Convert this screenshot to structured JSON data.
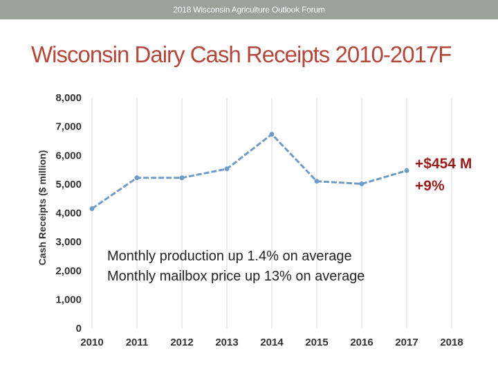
{
  "header": {
    "forum": "2018 Wisconsin Agriculture Outlook Forum"
  },
  "slide": {
    "title": "Wisconsin Dairy Cash Receipts 2010-2017F"
  },
  "colors": {
    "accent": "#b5473a",
    "series": "#6f9bc6",
    "annotation": "#9b1c1c",
    "header_bar": "#9aa29a"
  },
  "chart_data": {
    "type": "line",
    "title": "Wisconsin Dairy Cash Receipts 2010-2017F",
    "xlabel": "",
    "ylabel": "Cash Receipts ($ million)",
    "x_ticks": [
      "2010",
      "2011",
      "2012",
      "2013",
      "2014",
      "2015",
      "2016",
      "2017",
      "2018"
    ],
    "y_ticks": [
      "0",
      "1,000",
      "2,000",
      "3,000",
      "4,000",
      "5,000",
      "6,000",
      "7,000",
      "8,000"
    ],
    "ylim": [
      0,
      8000
    ],
    "xlim": [
      2010,
      2018
    ],
    "grid": "vertical",
    "series": [
      {
        "name": "Dairy Cash Receipts",
        "x": [
          2010,
          2011,
          2012,
          2013,
          2014,
          2015,
          2016,
          2017
        ],
        "values": [
          4150,
          5220,
          5220,
          5530,
          6730,
          5100,
          5010,
          5470
        ]
      }
    ],
    "annotations": {
      "change_amount": "+$454 M",
      "change_pct": "+9%",
      "note_line1": "Monthly production up 1.4% on average",
      "note_line2": "Monthly mailbox price up 13% on average"
    }
  }
}
